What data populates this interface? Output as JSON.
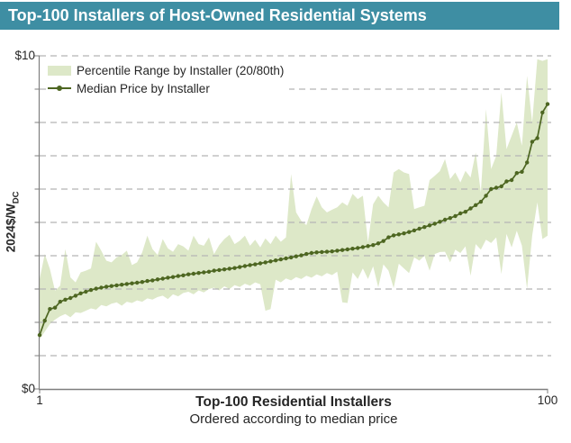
{
  "header": {
    "title": "Top-100 Installers of Host-Owned Residential Systems"
  },
  "legend": {
    "band_label": "Percentile Range by Installer (20/80th)",
    "line_label": "Median Price by Installer"
  },
  "axes": {
    "y_label_main": "2024$/W",
    "y_label_sub": "DC",
    "y_top_tick": "$10",
    "y_bottom_tick": "$0",
    "x_first_tick": "1",
    "x_last_tick": "100",
    "x_title": "Top-100 Residential Installers",
    "x_subtitle": "Ordered according to median price"
  },
  "colors": {
    "header_bg": "#3E8EA3",
    "header_text": "#ffffff",
    "band": "#DDE8C8",
    "line": "#4D6621",
    "grid": "#B5B5B5",
    "axis": "#7F7F7F",
    "text": "#262626"
  },
  "chart_data": {
    "type": "line",
    "title": "Top-100 Installers of Host-Owned Residential Systems",
    "xlabel": "Top-100 Residential Installers (ordered according to median price)",
    "ylabel": "2024$/W DC",
    "xlim": [
      1,
      100
    ],
    "ylim": [
      0,
      10
    ],
    "x_start": 1,
    "x_step": 1,
    "grid": "horizontal-dashed-every-$1",
    "legend_position": "top-left",
    "series": [
      {
        "name": "20th percentile (band lower)",
        "values": [
          1.5,
          1.72,
          1.95,
          2.08,
          2.18,
          2.25,
          2.15,
          2.3,
          2.28,
          2.35,
          2.42,
          2.38,
          2.52,
          2.48,
          2.56,
          2.6,
          2.5,
          2.62,
          2.58,
          2.66,
          2.62,
          2.72,
          2.68,
          2.76,
          2.8,
          2.7,
          2.84,
          2.78,
          2.88,
          2.92,
          2.84,
          2.96,
          2.9,
          3.0,
          3.04,
          2.96,
          3.08,
          3.0,
          3.12,
          3.06,
          3.16,
          3.1,
          3.2,
          3.14,
          2.35,
          2.4,
          3.28,
          3.2,
          3.32,
          3.26,
          3.36,
          3.3,
          3.4,
          3.34,
          3.44,
          3.38,
          3.48,
          3.42,
          3.52,
          2.6,
          2.58,
          3.5,
          3.3,
          3.62,
          3.3,
          3.68,
          3.05,
          3.74,
          3.55,
          3.03,
          3.76,
          3.62,
          3.48,
          3.95,
          3.85,
          4.0,
          3.55,
          4.05,
          4.11,
          4.12,
          3.8,
          4.18,
          4.08,
          4.28,
          3.4,
          4.35,
          4.18,
          4.48,
          4.38,
          4.55,
          3.45,
          4.65,
          4.25,
          4.75,
          4.3,
          3.0,
          4.6,
          5.6,
          4.5,
          4.6
        ]
      },
      {
        "name": "Median Price by Installer",
        "values": [
          1.62,
          2.05,
          2.4,
          2.44,
          2.62,
          2.68,
          2.73,
          2.8,
          2.87,
          2.92,
          2.97,
          3.01,
          3.04,
          3.07,
          3.09,
          3.11,
          3.13,
          3.15,
          3.17,
          3.19,
          3.21,
          3.24,
          3.26,
          3.29,
          3.31,
          3.34,
          3.36,
          3.39,
          3.41,
          3.44,
          3.46,
          3.48,
          3.5,
          3.52,
          3.55,
          3.57,
          3.59,
          3.61,
          3.63,
          3.66,
          3.69,
          3.72,
          3.74,
          3.77,
          3.8,
          3.83,
          3.86,
          3.89,
          3.92,
          3.95,
          3.98,
          4.01,
          4.05,
          4.08,
          4.1,
          4.11,
          4.12,
          4.13,
          4.15,
          4.17,
          4.19,
          4.21,
          4.23,
          4.26,
          4.29,
          4.32,
          4.37,
          4.44,
          4.55,
          4.61,
          4.64,
          4.67,
          4.71,
          4.76,
          4.81,
          4.86,
          4.91,
          4.96,
          5.02,
          5.08,
          5.13,
          5.19,
          5.27,
          5.32,
          5.42,
          5.52,
          5.62,
          5.8,
          6.0,
          6.04,
          6.08,
          6.23,
          6.27,
          6.48,
          6.52,
          6.8,
          7.42,
          7.53,
          8.3,
          8.55
        ]
      },
      {
        "name": "80th percentile (band upper)",
        "values": [
          3.3,
          4.05,
          3.6,
          2.95,
          3.1,
          4.2,
          3.35,
          3.2,
          3.5,
          3.55,
          3.62,
          4.42,
          4.15,
          3.85,
          3.8,
          3.95,
          4.02,
          4.15,
          3.72,
          3.8,
          4.1,
          4.6,
          4.2,
          4.02,
          4.5,
          4.22,
          4.12,
          4.35,
          4.28,
          4.15,
          4.6,
          4.35,
          4.3,
          4.55,
          4.05,
          4.32,
          4.5,
          4.63,
          4.35,
          4.45,
          4.6,
          4.3,
          4.48,
          4.25,
          4.52,
          4.35,
          4.6,
          4.42,
          4.55,
          6.45,
          5.3,
          5.05,
          4.92,
          5.4,
          5.78,
          5.45,
          5.3,
          5.38,
          5.45,
          5.6,
          5.5,
          5.86,
          5.7,
          5.8,
          4.4,
          5.55,
          5.8,
          5.6,
          5.45,
          6.5,
          6.6,
          6.5,
          6.45,
          5.4,
          5.45,
          5.5,
          6.27,
          6.4,
          6.54,
          6.9,
          6.3,
          6.5,
          6.2,
          6.55,
          6.35,
          7.1,
          5.9,
          8.4,
          6.6,
          7.0,
          8.9,
          7.2,
          7.6,
          8.0,
          7.3,
          9.4,
          8.0,
          9.9,
          9.85,
          9.9
        ]
      }
    ]
  }
}
